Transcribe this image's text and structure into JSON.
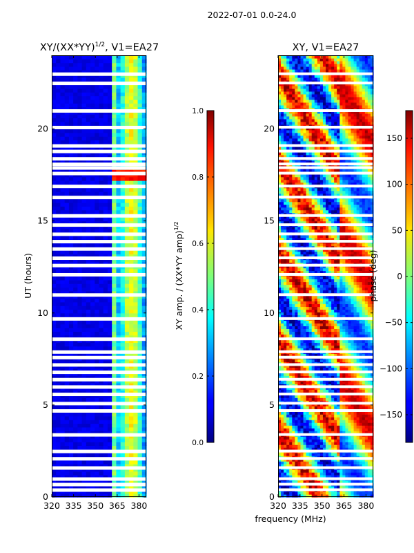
{
  "figure": {
    "suptitle": "2022-07-01 0.0-24.0"
  },
  "chart_data": [
    {
      "type": "heatmap",
      "title_main": "XY/(XX*YY)",
      "title_sup": "1/2",
      "title_rest": ", V1=EA27",
      "xlabel": "",
      "ylabel": "UT (hours)",
      "xlim": [
        320,
        385
      ],
      "ylim": [
        0,
        24
      ],
      "xticks": [
        320,
        335,
        350,
        365,
        380
      ],
      "yticks": [
        0,
        5,
        10,
        15,
        20
      ],
      "flagged_ut_hours": [
        0.35,
        0.65,
        0.95,
        1.55,
        2.05,
        2.45,
        3.35,
        4.65,
        5.05,
        5.55,
        5.95,
        6.35,
        6.75,
        7.15,
        7.55,
        7.85,
        8.55,
        9.65,
        10.95,
        12.05,
        12.55,
        12.95,
        13.45,
        13.85,
        14.25,
        14.75,
        15.25,
        16.25,
        16.85,
        17.55,
        17.85,
        18.05,
        18.35,
        18.75,
        19.05,
        20.05,
        20.95,
        22.45,
        22.95
      ],
      "colorbar": {
        "label": "XY amp. / (XX*YY amp)",
        "label_sup": "1/2",
        "min": 0.0,
        "max": 1.0,
        "ticks": [
          "0.0",
          "0.2",
          "0.4",
          "0.6",
          "0.8",
          "1.0"
        ],
        "colormap": "jet"
      }
    },
    {
      "type": "heatmap",
      "title": "XY, V1=EA27",
      "xlabel": "frequency (MHz)",
      "ylabel": "",
      "xlim": [
        320,
        385
      ],
      "ylim": [
        0,
        24
      ],
      "xticks": [
        320,
        335,
        350,
        365,
        380
      ],
      "yticks": [
        0,
        5,
        10,
        15,
        20
      ],
      "colorbar": {
        "label": "phase (deg)",
        "min": -180,
        "max": 180,
        "ticks": [
          "−150",
          "−100",
          "−50",
          "0",
          "50",
          "100",
          "150"
        ],
        "tick_values": [
          -150,
          -100,
          -50,
          0,
          50,
          100,
          150
        ],
        "colormap": "jet"
      }
    }
  ]
}
